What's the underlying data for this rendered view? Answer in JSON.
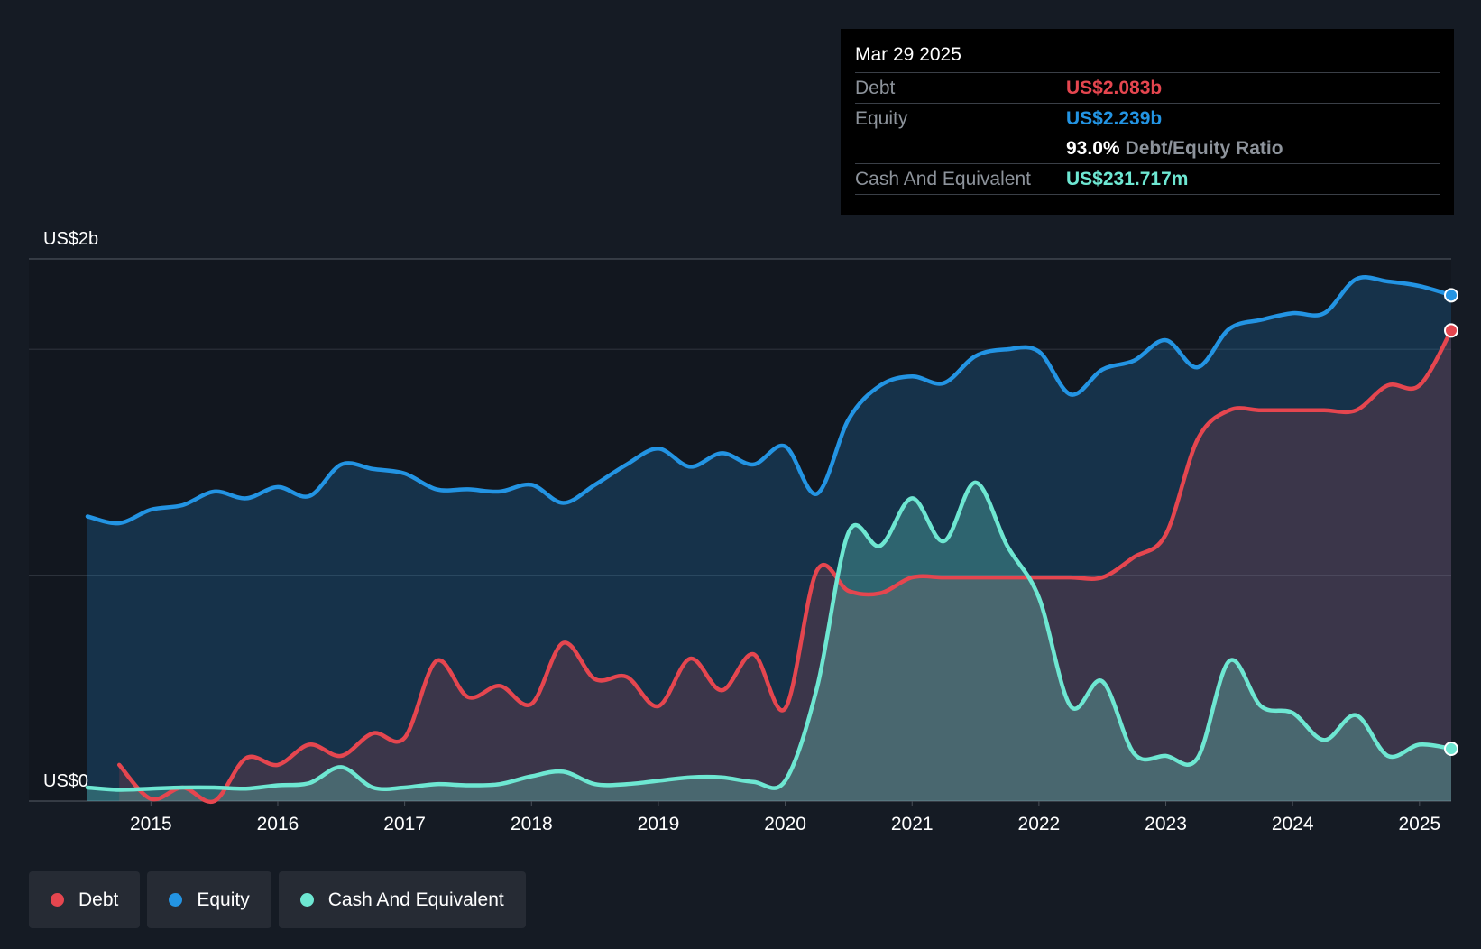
{
  "tooltip": {
    "date": "Mar 29 2025",
    "debt_label": "Debt",
    "debt_value": "US$2.083b",
    "equity_label": "Equity",
    "equity_value": "US$2.239b",
    "ratio_value": "93.0%",
    "ratio_label": "Debt/Equity Ratio",
    "cash_label": "Cash And Equivalent",
    "cash_value": "US$231.717m"
  },
  "colors": {
    "debt": "#e5464f",
    "equity": "#2394e3",
    "cash": "#6ee7d2",
    "background": "#151b24"
  },
  "legend": [
    {
      "label": "Debt",
      "color": "#e5464f"
    },
    {
      "label": "Equity",
      "color": "#2394e3"
    },
    {
      "label": "Cash And Equivalent",
      "color": "#6ee7d2"
    }
  ],
  "chart_data": {
    "type": "area",
    "y_unit": "US$ b",
    "ylim": [
      0,
      2.4
    ],
    "y_tick_labels": [
      {
        "value": 2.4,
        "label": "US$2b"
      },
      {
        "value": 0,
        "label": "US$0"
      }
    ],
    "gridlines": [
      0,
      1,
      2,
      2.4
    ],
    "xlim": [
      2014.5,
      2025.25
    ],
    "x_ticks": [
      2015,
      2016,
      2017,
      2018,
      2019,
      2020,
      2021,
      2022,
      2023,
      2024,
      2025
    ],
    "series": [
      {
        "name": "Debt",
        "color": "#e5464f",
        "points": [
          [
            2014.75,
            0.16
          ],
          [
            2015.0,
            0.01
          ],
          [
            2015.25,
            0.06
          ],
          [
            2015.5,
            0.0
          ],
          [
            2015.75,
            0.19
          ],
          [
            2016.0,
            0.16
          ],
          [
            2016.25,
            0.25
          ],
          [
            2016.5,
            0.2
          ],
          [
            2016.75,
            0.3
          ],
          [
            2017.0,
            0.28
          ],
          [
            2017.25,
            0.62
          ],
          [
            2017.5,
            0.46
          ],
          [
            2017.75,
            0.51
          ],
          [
            2018.0,
            0.43
          ],
          [
            2018.25,
            0.7
          ],
          [
            2018.5,
            0.54
          ],
          [
            2018.75,
            0.55
          ],
          [
            2019.0,
            0.42
          ],
          [
            2019.25,
            0.63
          ],
          [
            2019.5,
            0.49
          ],
          [
            2019.75,
            0.65
          ],
          [
            2020.0,
            0.41
          ],
          [
            2020.25,
            1.02
          ],
          [
            2020.5,
            0.93
          ],
          [
            2020.75,
            0.92
          ],
          [
            2021.0,
            0.99
          ],
          [
            2021.25,
            0.99
          ],
          [
            2021.5,
            0.99
          ],
          [
            2021.75,
            0.99
          ],
          [
            2022.0,
            0.99
          ],
          [
            2022.25,
            0.99
          ],
          [
            2022.5,
            0.99
          ],
          [
            2022.75,
            1.08
          ],
          [
            2023.0,
            1.18
          ],
          [
            2023.25,
            1.6
          ],
          [
            2023.5,
            1.73
          ],
          [
            2023.75,
            1.73
          ],
          [
            2024.0,
            1.73
          ],
          [
            2024.25,
            1.73
          ],
          [
            2024.5,
            1.73
          ],
          [
            2024.75,
            1.84
          ],
          [
            2025.0,
            1.84
          ],
          [
            2025.25,
            2.083
          ]
        ]
      },
      {
        "name": "Equity",
        "color": "#2394e3",
        "points": [
          [
            2014.5,
            1.26
          ],
          [
            2014.75,
            1.23
          ],
          [
            2015.0,
            1.29
          ],
          [
            2015.25,
            1.31
          ],
          [
            2015.5,
            1.37
          ],
          [
            2015.75,
            1.34
          ],
          [
            2016.0,
            1.39
          ],
          [
            2016.25,
            1.35
          ],
          [
            2016.5,
            1.49
          ],
          [
            2016.75,
            1.47
          ],
          [
            2017.0,
            1.45
          ],
          [
            2017.25,
            1.38
          ],
          [
            2017.5,
            1.38
          ],
          [
            2017.75,
            1.37
          ],
          [
            2018.0,
            1.4
          ],
          [
            2018.25,
            1.32
          ],
          [
            2018.5,
            1.4
          ],
          [
            2018.75,
            1.49
          ],
          [
            2019.0,
            1.56
          ],
          [
            2019.25,
            1.48
          ],
          [
            2019.5,
            1.54
          ],
          [
            2019.75,
            1.49
          ],
          [
            2020.0,
            1.57
          ],
          [
            2020.25,
            1.36
          ],
          [
            2020.5,
            1.69
          ],
          [
            2020.75,
            1.84
          ],
          [
            2021.0,
            1.88
          ],
          [
            2021.25,
            1.85
          ],
          [
            2021.5,
            1.97
          ],
          [
            2021.75,
            2.0
          ],
          [
            2022.0,
            1.99
          ],
          [
            2022.25,
            1.8
          ],
          [
            2022.5,
            1.91
          ],
          [
            2022.75,
            1.95
          ],
          [
            2023.0,
            2.04
          ],
          [
            2023.25,
            1.92
          ],
          [
            2023.5,
            2.09
          ],
          [
            2023.75,
            2.13
          ],
          [
            2024.0,
            2.16
          ],
          [
            2024.25,
            2.16
          ],
          [
            2024.5,
            2.31
          ],
          [
            2024.75,
            2.3
          ],
          [
            2025.0,
            2.28
          ],
          [
            2025.25,
            2.239
          ]
        ]
      },
      {
        "name": "Cash And Equivalent",
        "color": "#6ee7d2",
        "points": [
          [
            2014.5,
            0.06
          ],
          [
            2014.75,
            0.05
          ],
          [
            2015.0,
            0.055
          ],
          [
            2015.25,
            0.06
          ],
          [
            2015.5,
            0.06
          ],
          [
            2015.75,
            0.055
          ],
          [
            2016.0,
            0.07
          ],
          [
            2016.25,
            0.08
          ],
          [
            2016.5,
            0.15
          ],
          [
            2016.75,
            0.06
          ],
          [
            2017.0,
            0.06
          ],
          [
            2017.25,
            0.075
          ],
          [
            2017.5,
            0.07
          ],
          [
            2017.75,
            0.075
          ],
          [
            2018.0,
            0.11
          ],
          [
            2018.25,
            0.13
          ],
          [
            2018.5,
            0.075
          ],
          [
            2018.75,
            0.075
          ],
          [
            2019.0,
            0.09
          ],
          [
            2019.25,
            0.105
          ],
          [
            2019.5,
            0.105
          ],
          [
            2019.75,
            0.085
          ],
          [
            2020.0,
            0.09
          ],
          [
            2020.25,
            0.5
          ],
          [
            2020.5,
            1.19
          ],
          [
            2020.75,
            1.13
          ],
          [
            2021.0,
            1.34
          ],
          [
            2021.25,
            1.15
          ],
          [
            2021.5,
            1.41
          ],
          [
            2021.75,
            1.13
          ],
          [
            2022.0,
            0.9
          ],
          [
            2022.25,
            0.42
          ],
          [
            2022.5,
            0.53
          ],
          [
            2022.75,
            0.21
          ],
          [
            2023.0,
            0.2
          ],
          [
            2023.25,
            0.19
          ],
          [
            2023.5,
            0.62
          ],
          [
            2023.75,
            0.42
          ],
          [
            2024.0,
            0.39
          ],
          [
            2024.25,
            0.27
          ],
          [
            2024.5,
            0.38
          ],
          [
            2024.75,
            0.2
          ],
          [
            2025.0,
            0.25
          ],
          [
            2025.25,
            0.231717
          ]
        ]
      }
    ]
  }
}
